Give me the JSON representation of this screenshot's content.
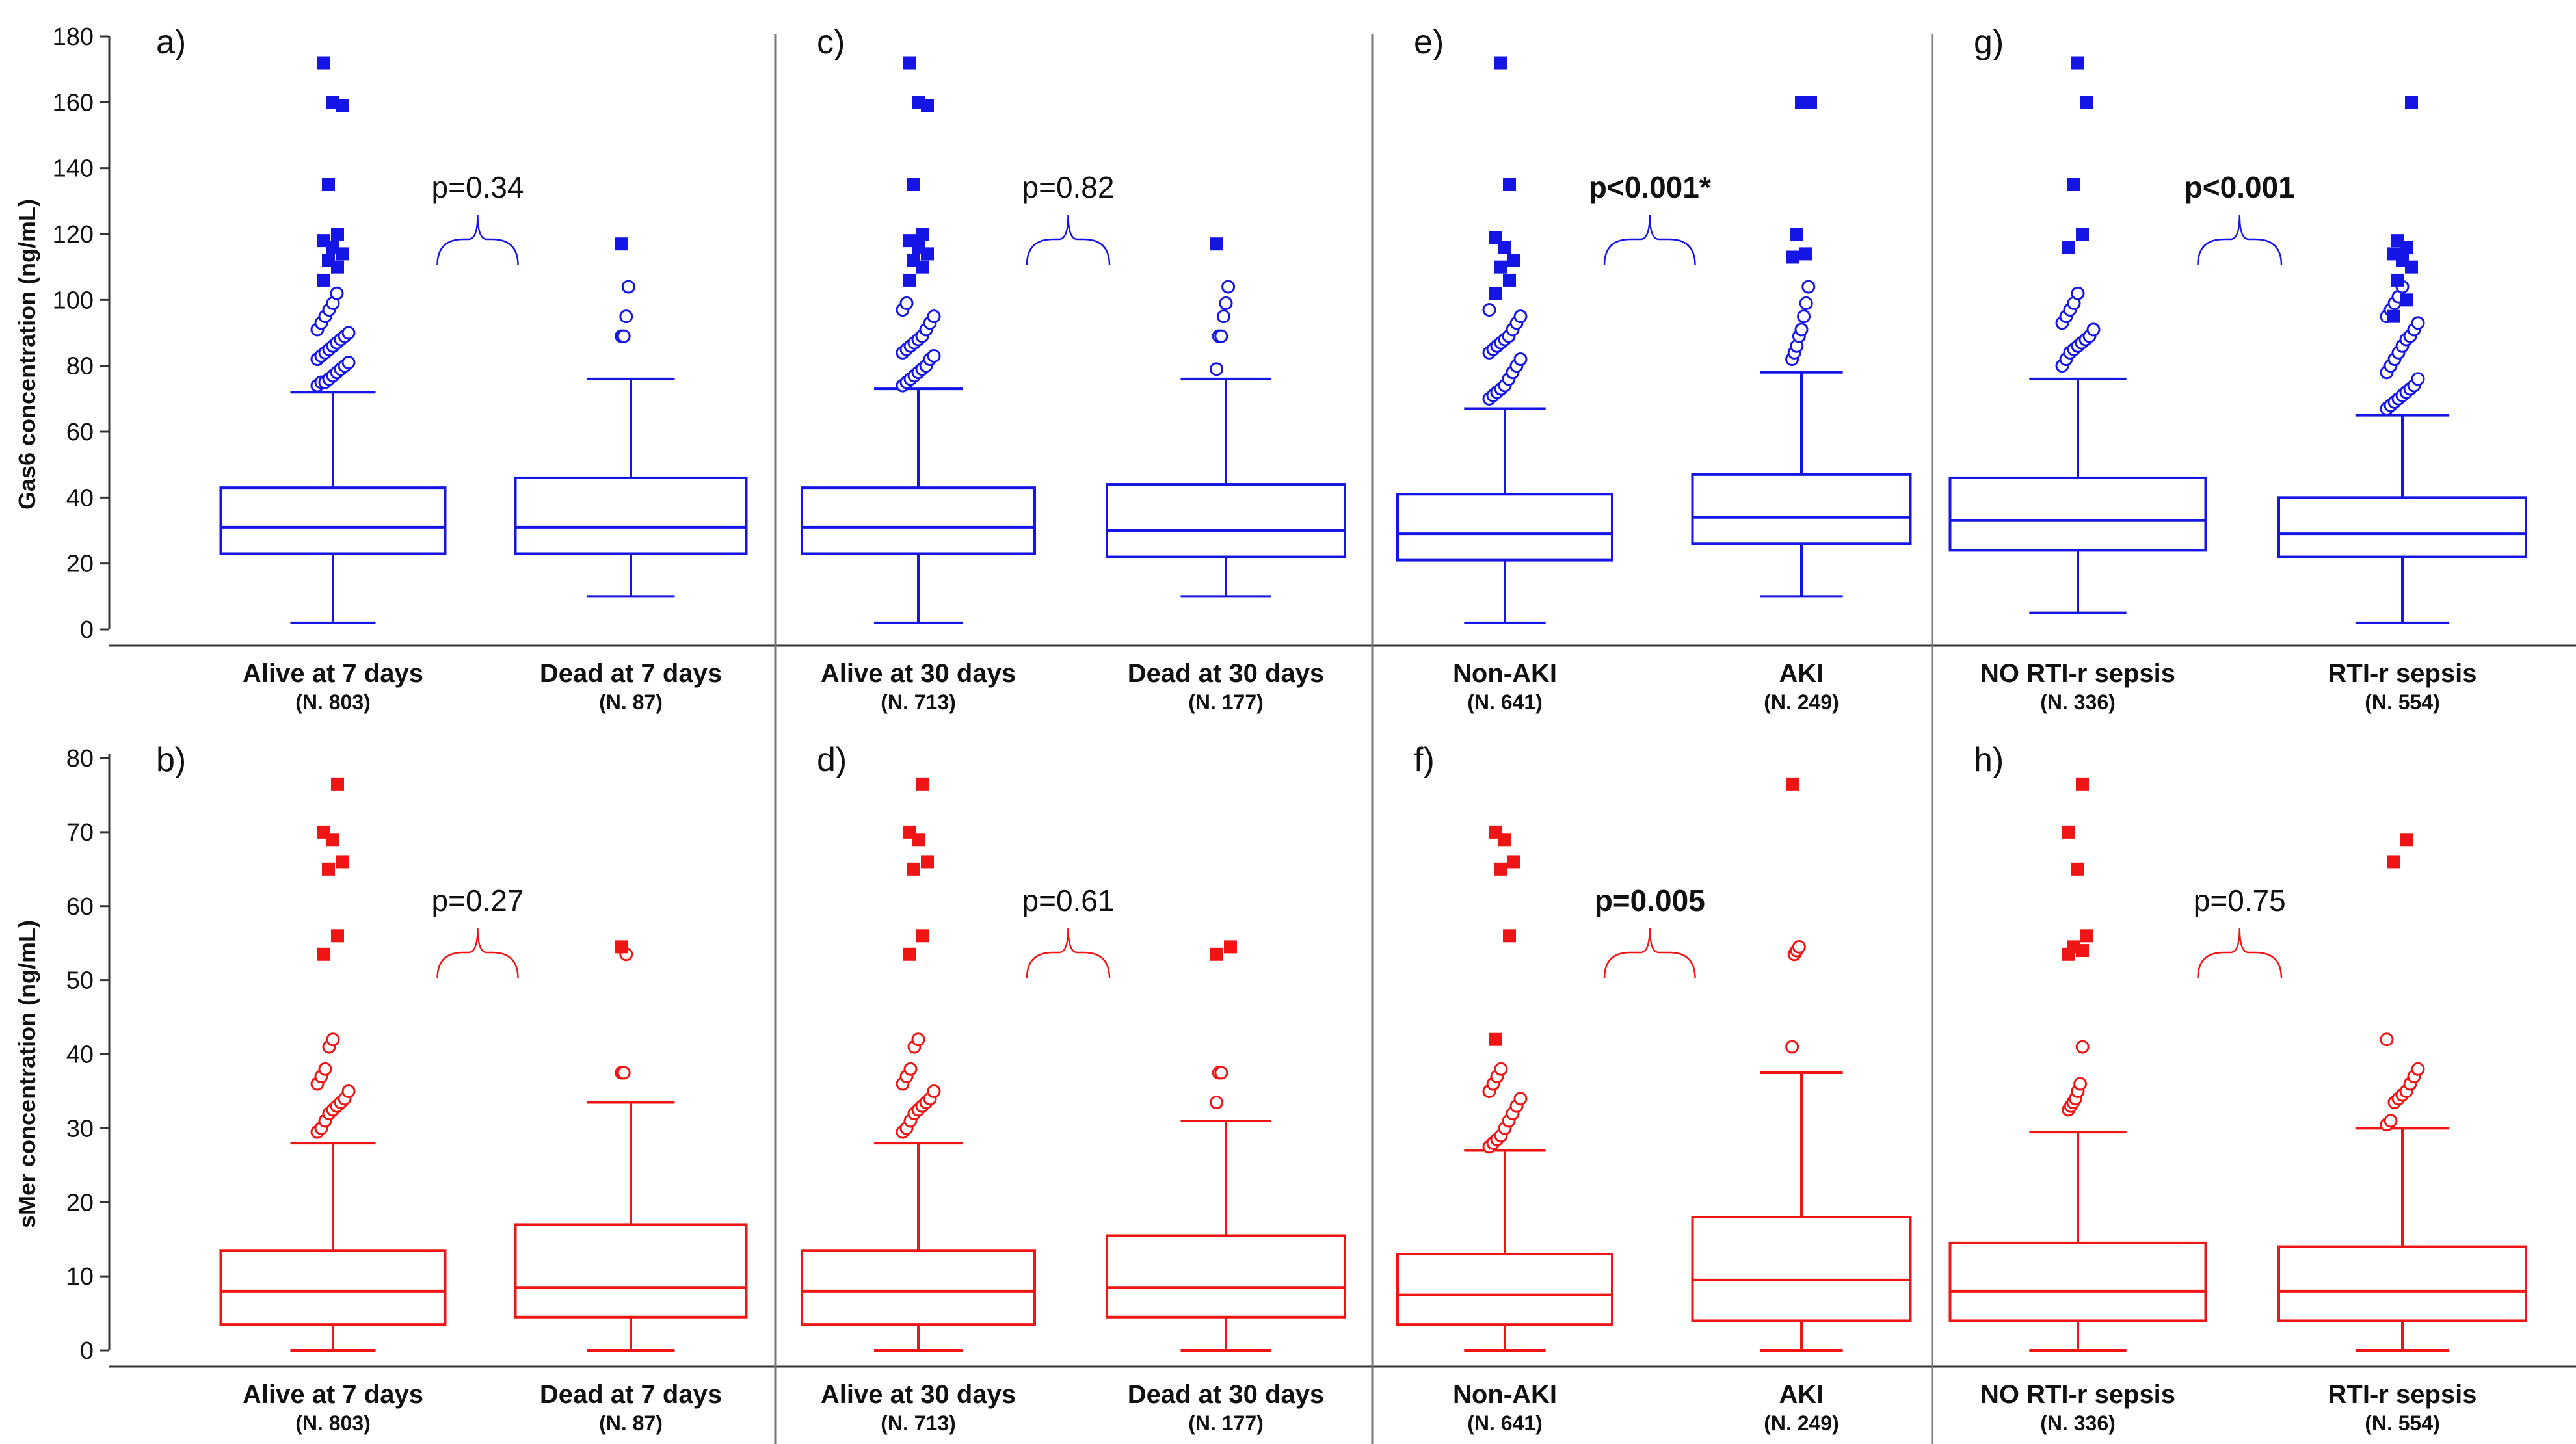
{
  "figure": {
    "rows": [
      {
        "color": "#1515e6",
        "ylabel": "Gas6 concentration (ng/mL)"
      },
      {
        "color": "#f01515",
        "ylabel": "sMer concentration (ng/mL)"
      }
    ]
  },
  "chart_data": [
    {
      "type": "box",
      "panel": "a)",
      "ylabel": "Gas6 concentration (ng/mL)",
      "ylim": [
        0,
        180
      ],
      "yticks": [
        0,
        20,
        40,
        60,
        80,
        100,
        120,
        140,
        160,
        180
      ],
      "pvalue": "p=0.34",
      "pvalue_bold": false,
      "categories": [
        "Alive at 7 days",
        "Dead at 7 days"
      ],
      "n": [
        "(N. 803)",
        "(N. 87)"
      ],
      "series": [
        {
          "name": "Alive at 7 days",
          "whisker_low": 2,
          "q1": 23,
          "median": 31,
          "q3": 43,
          "whisker_high": 72,
          "outliers": [
            74,
            75,
            75,
            76,
            77,
            78,
            79,
            80,
            81,
            82,
            83,
            84,
            85,
            86,
            87,
            88,
            89,
            90,
            91,
            93,
            95,
            97,
            99,
            102
          ],
          "far_outliers": [
            106,
            110,
            112,
            114,
            116,
            118,
            120,
            135,
            159,
            160,
            172
          ]
        },
        {
          "name": "Dead at 7 days",
          "whisker_low": 10,
          "q1": 23,
          "median": 31,
          "q3": 46,
          "whisker_high": 76,
          "outliers": [
            89,
            89,
            95,
            104
          ],
          "far_outliers": [
            117
          ]
        }
      ]
    },
    {
      "type": "box",
      "panel": "c)",
      "ylabel": "Gas6 concentration (ng/mL)",
      "ylim": [
        0,
        180
      ],
      "yticks": [
        0,
        20,
        40,
        60,
        80,
        100,
        120,
        140,
        160,
        180
      ],
      "pvalue": "p=0.82",
      "pvalue_bold": false,
      "categories": [
        "Alive at 30 days",
        "Dead at 30 days"
      ],
      "n": [
        "(N. 713)",
        "(N. 177)"
      ],
      "series": [
        {
          "name": "Alive at 30 days",
          "whisker_low": 2,
          "q1": 23,
          "median": 31,
          "q3": 43,
          "whisker_high": 73,
          "outliers": [
            74,
            75,
            76,
            77,
            78,
            79,
            80,
            82,
            83,
            84,
            85,
            86,
            87,
            88,
            89,
            91,
            93,
            95,
            97,
            99
          ],
          "far_outliers": [
            106,
            110,
            112,
            114,
            116,
            118,
            120,
            135,
            159,
            160,
            172
          ]
        },
        {
          "name": "Dead at 30 days",
          "whisker_low": 10,
          "q1": 22,
          "median": 30,
          "q3": 44,
          "whisker_high": 76,
          "outliers": [
            79,
            89,
            89,
            95,
            99,
            104
          ],
          "far_outliers": [
            117
          ]
        }
      ]
    },
    {
      "type": "box",
      "panel": "e)",
      "ylabel": "Gas6 concentration (ng/mL)",
      "ylim": [
        0,
        180
      ],
      "yticks": [
        0,
        20,
        40,
        60,
        80,
        100,
        120,
        140,
        160,
        180
      ],
      "pvalue": "p<0.001*",
      "pvalue_bold": true,
      "categories": [
        "Non-AKI",
        "AKI"
      ],
      "n": [
        "(N. 641)",
        "(N. 249)"
      ],
      "series": [
        {
          "name": "Non-AKI",
          "whisker_low": 2,
          "q1": 21,
          "median": 29,
          "q3": 41,
          "whisker_high": 67,
          "outliers": [
            70,
            71,
            72,
            73,
            74,
            76,
            78,
            80,
            82,
            84,
            85,
            86,
            87,
            88,
            89,
            91,
            93,
            95,
            97
          ],
          "far_outliers": [
            102,
            106,
            110,
            112,
            116,
            119,
            135,
            172
          ]
        },
        {
          "name": "AKI",
          "whisker_low": 10,
          "q1": 26,
          "median": 34,
          "q3": 47,
          "whisker_high": 78,
          "outliers": [
            82,
            84,
            86,
            89,
            91,
            95,
            99,
            104
          ],
          "far_outliers": [
            113,
            114,
            120,
            160,
            160
          ]
        }
      ]
    },
    {
      "type": "box",
      "panel": "g)",
      "ylabel": "Gas6 concentration (ng/mL)",
      "ylim": [
        0,
        180
      ],
      "yticks": [
        0,
        20,
        40,
        60,
        80,
        100,
        120,
        140,
        160,
        180
      ],
      "pvalue": "p<0.001",
      "pvalue_bold": true,
      "categories": [
        "NO RTI-r sepsis",
        "RTI-r sepsis"
      ],
      "n": [
        "(N. 336)",
        "(N. 554)"
      ],
      "series": [
        {
          "name": "NO RTI-r sepsis",
          "whisker_low": 5,
          "q1": 24,
          "median": 33,
          "q3": 46,
          "whisker_high": 76,
          "outliers": [
            80,
            82,
            84,
            85,
            86,
            87,
            88,
            89,
            91,
            93,
            95,
            97,
            99,
            102
          ],
          "far_outliers": [
            116,
            120,
            135,
            160,
            172
          ]
        },
        {
          "name": "RTI-r sepsis",
          "whisker_low": 2,
          "q1": 22,
          "median": 29,
          "q3": 40,
          "whisker_high": 65,
          "outliers": [
            67,
            68,
            69,
            70,
            71,
            72,
            73,
            74,
            76,
            78,
            80,
            82,
            84,
            86,
            88,
            89,
            91,
            93,
            95,
            97,
            99,
            101,
            104
          ],
          "far_outliers": [
            95,
            100,
            106,
            110,
            112,
            114,
            116,
            118,
            160
          ]
        }
      ]
    },
    {
      "type": "box",
      "panel": "b)",
      "ylabel": "sMer concentration (ng/mL)",
      "ylim": [
        0,
        80
      ],
      "yticks": [
        0,
        10,
        20,
        30,
        40,
        50,
        60,
        70,
        80
      ],
      "pvalue": "p=0.27",
      "pvalue_bold": false,
      "categories": [
        "Alive at 7 days",
        "Dead at 7 days"
      ],
      "n": [
        "(N. 803)",
        "(N. 87)"
      ],
      "series": [
        {
          "name": "Alive at 7 days",
          "whisker_low": 0,
          "q1": 3.5,
          "median": 8,
          "q3": 13.5,
          "whisker_high": 28,
          "outliers": [
            29.5,
            30,
            31,
            32,
            32.5,
            33,
            33.5,
            34,
            35,
            36,
            37,
            38,
            41,
            42
          ],
          "far_outliers": [
            53.5,
            56,
            65,
            66,
            69,
            70,
            76.5
          ]
        },
        {
          "name": "Dead at 7 days",
          "whisker_low": 0,
          "q1": 4.5,
          "median": 8.5,
          "q3": 17,
          "whisker_high": 33.5,
          "outliers": [
            37.5,
            37.5,
            53.5
          ],
          "far_outliers": [
            54.5
          ]
        }
      ]
    },
    {
      "type": "box",
      "panel": "d)",
      "ylabel": "sMer concentration (ng/mL)",
      "ylim": [
        0,
        80
      ],
      "yticks": [
        0,
        10,
        20,
        30,
        40,
        50,
        60,
        70,
        80
      ],
      "pvalue": "p=0.61",
      "pvalue_bold": false,
      "categories": [
        "Alive at 30 days",
        "Dead at 30 days"
      ],
      "n": [
        "(N. 713)",
        "(N. 177)"
      ],
      "series": [
        {
          "name": "Alive at 30 days",
          "whisker_low": 0,
          "q1": 3.5,
          "median": 8,
          "q3": 13.5,
          "whisker_high": 28,
          "outliers": [
            29.5,
            30,
            31,
            32,
            32.5,
            33,
            33.5,
            34,
            35,
            36,
            37,
            38,
            41,
            42
          ],
          "far_outliers": [
            53.5,
            56,
            65,
            66,
            69,
            70,
            76.5
          ]
        },
        {
          "name": "Dead at 30 days",
          "whisker_low": 0,
          "q1": 4.5,
          "median": 8.5,
          "q3": 15.5,
          "whisker_high": 31,
          "outliers": [
            33.5,
            37.5,
            37.5
          ],
          "far_outliers": [
            53.5,
            54.5
          ]
        }
      ]
    },
    {
      "type": "box",
      "panel": "f)",
      "ylabel": "sMer concentration (ng/mL)",
      "ylim": [
        0,
        80
      ],
      "yticks": [
        0,
        10,
        20,
        30,
        40,
        50,
        60,
        70,
        80
      ],
      "pvalue": "p=0.005",
      "pvalue_bold": true,
      "categories": [
        "Non-AKI",
        "AKI"
      ],
      "n": [
        "(N. 641)",
        "(N. 249)"
      ],
      "series": [
        {
          "name": "Non-AKI",
          "whisker_low": 0,
          "q1": 3.5,
          "median": 7.5,
          "q3": 13,
          "whisker_high": 27,
          "outliers": [
            27.5,
            28,
            28.5,
            29,
            30,
            31,
            32,
            33,
            34,
            35,
            36,
            37,
            38
          ],
          "far_outliers": [
            42,
            56,
            65,
            66,
            69,
            70
          ]
        },
        {
          "name": "AKI",
          "whisker_low": 0,
          "q1": 4,
          "median": 9.5,
          "q3": 18,
          "whisker_high": 37.5,
          "outliers": [
            41,
            53.5,
            54,
            54.5
          ],
          "far_outliers": [
            76.5
          ]
        }
      ]
    },
    {
      "type": "box",
      "panel": "h)",
      "ylabel": "sMer concentration (ng/mL)",
      "ylim": [
        0,
        80
      ],
      "yticks": [
        0,
        10,
        20,
        30,
        40,
        50,
        60,
        70,
        80
      ],
      "pvalue": "p=0.75",
      "pvalue_bold": false,
      "categories": [
        "NO RTI-r sepsis",
        "RTI-r sepsis"
      ],
      "n": [
        "(N. 336)",
        "(N. 554)"
      ],
      "series": [
        {
          "name": "NO RTI-r sepsis",
          "whisker_low": 0,
          "q1": 4,
          "median": 8,
          "q3": 14.5,
          "whisker_high": 29.5,
          "outliers": [
            32.5,
            33,
            33.5,
            34,
            35,
            36,
            41
          ],
          "far_outliers": [
            53.5,
            54,
            54.5,
            56,
            65,
            70,
            76.5
          ]
        },
        {
          "name": "RTI-r sepsis",
          "whisker_low": 0,
          "q1": 4,
          "median": 8,
          "q3": 14,
          "whisker_high": 30,
          "outliers": [
            30.5,
            31,
            33.5,
            34,
            34.5,
            35,
            36,
            37,
            38,
            42
          ],
          "far_outliers": [
            66,
            69
          ]
        }
      ]
    }
  ]
}
